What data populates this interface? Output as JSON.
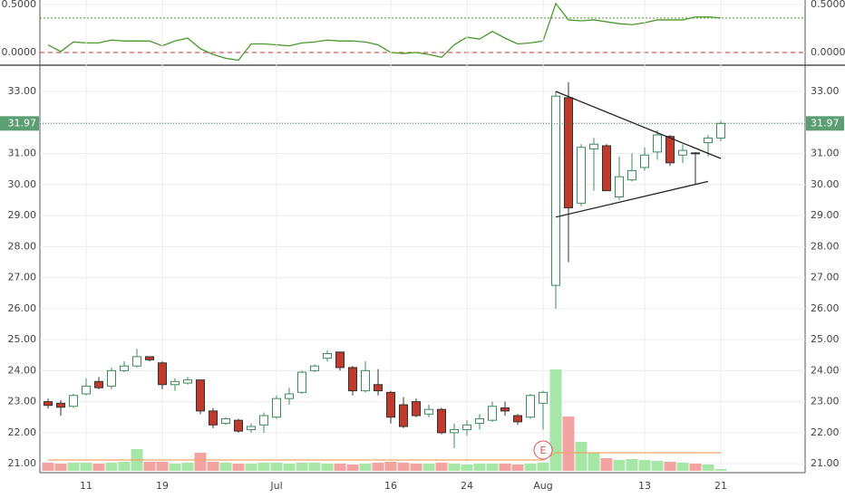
{
  "chart_data": [
    {
      "type": "line",
      "values": [
        0.08,
        0.01,
        0.11,
        0.1,
        0.1,
        0.13,
        0.12,
        0.12,
        0.12,
        0.07,
        0.12,
        0.15,
        0.04,
        -0.02,
        -0.06,
        -0.08,
        0.09,
        0.09,
        0.08,
        0.07,
        0.1,
        0.11,
        0.13,
        0.12,
        0.12,
        0.11,
        0.08,
        0.0,
        -0.01,
        0.0,
        -0.02,
        -0.05,
        0.08,
        0.16,
        0.14,
        0.22,
        0.15,
        0.09,
        0.1,
        0.12,
        0.51,
        0.34,
        0.33,
        0.34,
        0.32,
        0.3,
        0.29,
        0.31,
        0.34,
        0.34,
        0.34,
        0.37,
        0.37,
        0.36
      ],
      "color": "#4a9a2a",
      "ylim": [
        -0.113,
        0.547
      ],
      "yticks": [
        {
          "value": 0.5,
          "label": "0.5000"
        },
        {
          "value": 0,
          "label": "0.0000"
        }
      ],
      "levels": [
        {
          "value": 0.36,
          "color": "#4a9a2a"
        },
        {
          "value": 0,
          "color": "#c0392b"
        }
      ]
    },
    {
      "type": "candlestick",
      "categories": [
        null,
        null,
        null,
        "11",
        null,
        null,
        null,
        null,
        null,
        "19",
        null,
        null,
        null,
        null,
        null,
        null,
        null,
        null,
        "Jul",
        null,
        null,
        null,
        null,
        null,
        null,
        null,
        null,
        "16",
        null,
        null,
        null,
        null,
        null,
        "24",
        null,
        null,
        null,
        null,
        null,
        "Aug",
        null,
        null,
        null,
        null,
        null,
        null,
        null,
        "13",
        null,
        null,
        null,
        null,
        null,
        "21"
      ],
      "open": [
        23.0,
        22.95,
        22.85,
        23.25,
        23.65,
        23.5,
        24.0,
        24.15,
        24.45,
        24.25,
        23.55,
        23.6,
        23.7,
        22.7,
        22.3,
        22.4,
        22.1,
        22.25,
        22.5,
        23.1,
        23.3,
        24.0,
        24.4,
        24.6,
        24.1,
        23.35,
        23.55,
        23.3,
        22.9,
        23.0,
        22.6,
        22.75,
        22.0,
        22.1,
        22.3,
        22.4,
        22.8,
        22.55,
        22.5,
        22.95,
        26.75,
        32.8,
        29.4,
        31.15,
        31.25,
        29.6,
        30.15,
        30.55,
        31.05,
        31.55,
        30.95,
        31.02,
        31.35,
        31.5
      ],
      "high": [
        23.1,
        23.05,
        23.25,
        23.75,
        23.8,
        24.1,
        24.3,
        24.7,
        24.45,
        24.3,
        23.75,
        23.8,
        23.7,
        22.8,
        22.5,
        22.45,
        22.3,
        22.65,
        23.2,
        23.45,
        24.0,
        24.2,
        24.65,
        24.6,
        24.15,
        24.3,
        24.05,
        23.35,
        23.15,
        23.1,
        22.9,
        22.8,
        22.3,
        22.4,
        22.6,
        23.0,
        23.0,
        22.6,
        23.25,
        23.35,
        33.0,
        33.3,
        31.3,
        31.5,
        31.3,
        30.9,
        31.0,
        31.2,
        31.75,
        31.6,
        31.3,
        31.05,
        31.6,
        32.05
      ],
      "low": [
        22.78,
        22.55,
        22.8,
        23.2,
        23.4,
        23.4,
        23.95,
        24.1,
        24.3,
        23.4,
        23.35,
        23.55,
        22.6,
        22.15,
        22.25,
        22.0,
        22.0,
        22.0,
        22.45,
        22.9,
        23.25,
        23.95,
        24.3,
        24.0,
        23.2,
        23.3,
        23.2,
        22.3,
        22.15,
        22.5,
        22.5,
        21.95,
        21.5,
        21.9,
        22.1,
        22.35,
        22.55,
        22.25,
        22.45,
        22.1,
        26.0,
        27.5,
        29.3,
        29.8,
        29.8,
        29.5,
        30.1,
        30.45,
        30.8,
        30.6,
        30.7,
        30.0,
        30.9,
        31.4
      ],
      "close": [
        22.88,
        22.82,
        23.2,
        23.5,
        23.45,
        24.0,
        24.15,
        24.45,
        24.35,
        23.55,
        23.65,
        23.7,
        22.7,
        22.25,
        22.45,
        22.05,
        22.2,
        22.55,
        23.1,
        23.25,
        23.95,
        24.15,
        24.55,
        24.1,
        23.35,
        24.0,
        23.35,
        22.5,
        22.2,
        22.55,
        22.75,
        22.0,
        22.1,
        22.25,
        22.45,
        22.85,
        22.7,
        22.35,
        23.2,
        23.3,
        32.85,
        29.25,
        31.2,
        31.3,
        29.8,
        30.25,
        30.45,
        30.95,
        31.6,
        30.7,
        31.1,
        31.0,
        31.5,
        31.97
      ],
      "up_color": "#3d8b5c",
      "down_color": "#c0392b",
      "volume": [
        9,
        8,
        9,
        9,
        8,
        9,
        10,
        24,
        10,
        10,
        8,
        9,
        20,
        10,
        9,
        8,
        8,
        9,
        9,
        8,
        9,
        9,
        8,
        8,
        7,
        8,
        9,
        10,
        9,
        8,
        8,
        9,
        8,
        7,
        8,
        8,
        8,
        7,
        8,
        9,
        112,
        60,
        32,
        20,
        14,
        12,
        13,
        12,
        11,
        10,
        9,
        8,
        7,
        2
      ],
      "volume_up_color": "#a6e6a6",
      "volume_down_color": "#f4a3a3",
      "volume_ma": [
        12,
        12,
        12,
        12,
        12,
        12,
        12,
        12,
        12,
        12,
        12,
        12,
        12,
        12,
        12,
        12,
        12,
        12,
        12,
        12,
        12,
        12,
        12,
        12,
        12,
        12,
        12,
        12,
        12,
        12,
        12,
        12,
        12,
        12,
        12,
        12,
        12,
        12,
        12,
        12,
        20,
        20,
        20,
        20,
        20,
        20,
        20,
        20,
        20,
        20,
        20,
        20,
        20,
        20
      ],
      "volume_ma_color": "#f4a460",
      "ylim": [
        20.77,
        33.76
      ],
      "yticks": [
        {
          "value": 33,
          "label": "33.00"
        },
        {
          "value": 32,
          "label": "32.00"
        },
        {
          "value": 31,
          "label": "31.00"
        },
        {
          "value": 30,
          "label": "30.00"
        },
        {
          "value": 29,
          "label": "29.00"
        },
        {
          "value": 28,
          "label": "28.00"
        },
        {
          "value": 27,
          "label": "27.00"
        },
        {
          "value": 26,
          "label": "26.00"
        },
        {
          "value": 25,
          "label": "25.00"
        },
        {
          "value": 24,
          "label": "24.00"
        },
        {
          "value": 23,
          "label": "23.00"
        },
        {
          "value": 22,
          "label": "22.00"
        },
        {
          "value": 21,
          "label": "21.00"
        }
      ],
      "last_price": 31.97,
      "trendlines": [
        {
          "x": [
            40,
            53
          ],
          "y": [
            33.0,
            30.84
          ]
        },
        {
          "x": [
            40,
            52
          ],
          "y": [
            28.95,
            30.1
          ]
        }
      ],
      "annotation": "E",
      "annotation_index": 39
    }
  ]
}
